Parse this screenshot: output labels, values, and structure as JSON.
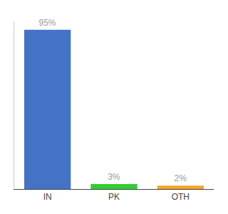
{
  "chart_data": {
    "type": "bar",
    "categories": [
      "IN",
      "PK",
      "OTH"
    ],
    "values": [
      95,
      3,
      2
    ],
    "value_labels": [
      "95%",
      "3%",
      "2%"
    ],
    "colors": [
      "#4472c4",
      "#33cc33",
      "#f5a623"
    ],
    "data_labels": true,
    "ylim": [
      0,
      100
    ],
    "grid": false,
    "tick_labels": "x"
  }
}
